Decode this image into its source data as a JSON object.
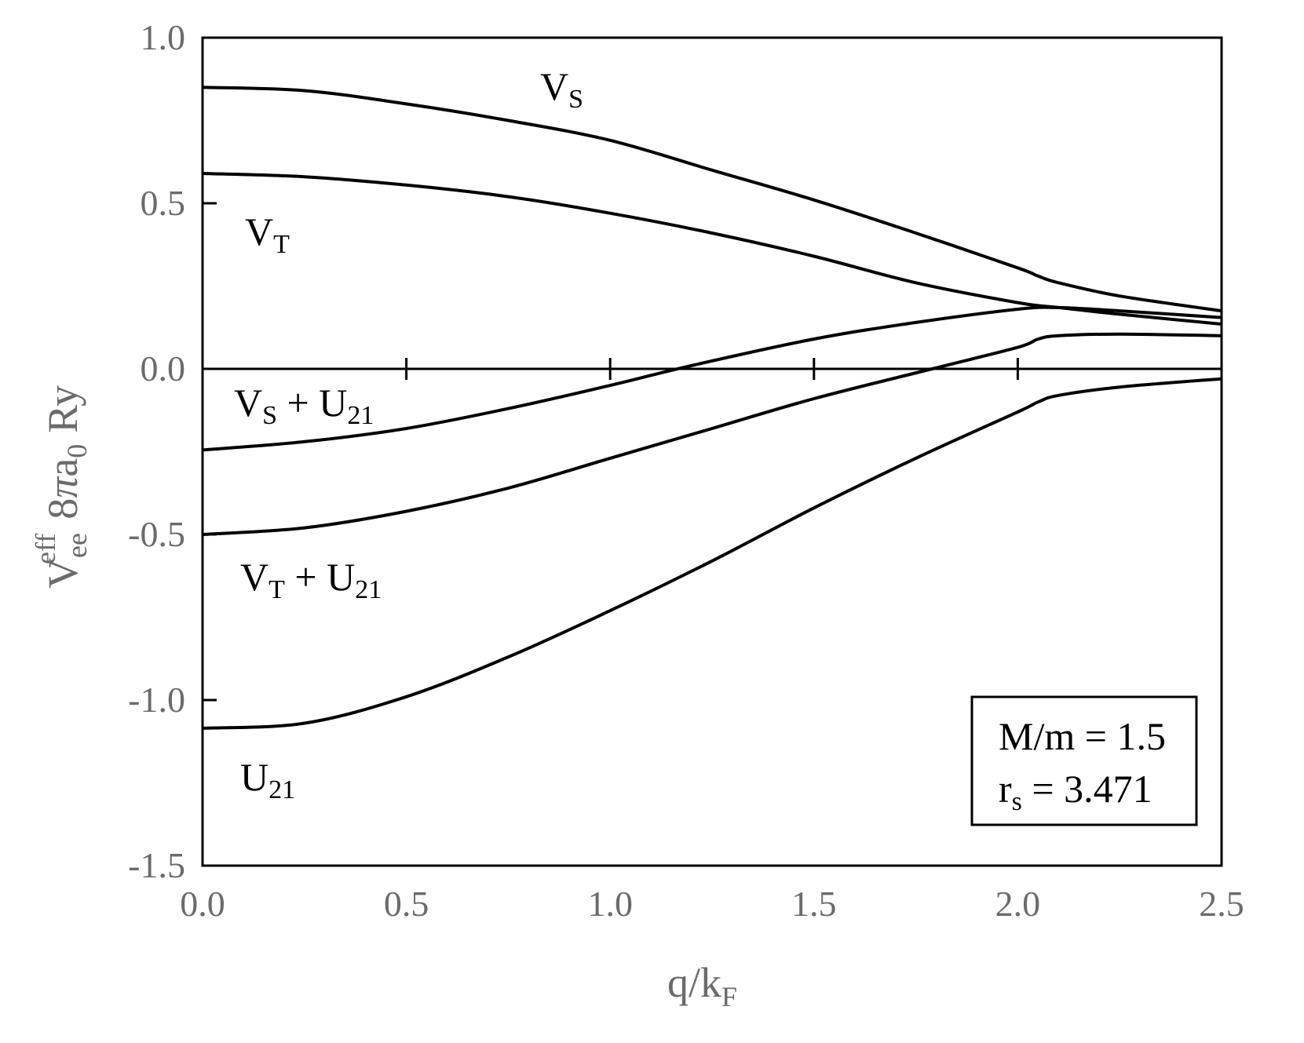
{
  "chart_data": {
    "type": "line",
    "xlabel": {
      "main": "q/k",
      "sub": "F"
    },
    "ylabel": {
      "v": "V",
      "v_sub": "ee",
      "v_sup": "eff",
      "rest": "8",
      "pi": "π",
      "a": "a",
      "a_sub": "0",
      "ry": "Ry"
    },
    "xlim": [
      0,
      2.5
    ],
    "ylim": [
      -1.5,
      1.0
    ],
    "x_ticks": [
      0.0,
      0.5,
      1.0,
      1.5,
      2.0,
      2.5
    ],
    "x_tick_labels": [
      "0.0",
      "0.5",
      "1.0",
      "1.5",
      "2.0",
      "2.5"
    ],
    "y_ticks": [
      1.0,
      0.5,
      0.0,
      -0.5,
      -1.0,
      -1.5
    ],
    "y_tick_labels": [
      "1.0",
      "0.5",
      "0.0",
      "-0.5",
      "-1.0",
      "-1.5"
    ],
    "line_color": "#000000",
    "axis_text_color": "#6b6b6b",
    "series": [
      {
        "name": "V_S",
        "x": [
          0,
          0.25,
          0.5,
          0.75,
          1.0,
          1.25,
          1.5,
          1.75,
          2.0,
          2.05,
          2.1,
          2.25,
          2.5
        ],
        "y": [
          0.85,
          0.84,
          0.8,
          0.75,
          0.69,
          0.6,
          0.51,
          0.41,
          0.305,
          0.28,
          0.26,
          0.22,
          0.175
        ]
      },
      {
        "name": "V_T",
        "x": [
          0,
          0.25,
          0.5,
          0.75,
          1.0,
          1.25,
          1.5,
          1.75,
          2.0,
          2.1,
          2.25,
          2.5
        ],
        "y": [
          0.59,
          0.58,
          0.555,
          0.52,
          0.47,
          0.41,
          0.34,
          0.26,
          0.2,
          0.185,
          0.165,
          0.135
        ]
      },
      {
        "name": "V_S + U_21",
        "x": [
          0,
          0.25,
          0.5,
          0.75,
          1.0,
          1.2,
          1.5,
          1.75,
          2.0,
          2.1,
          2.25,
          2.5
        ],
        "y": [
          -0.245,
          -0.22,
          -0.18,
          -0.12,
          -0.05,
          0.01,
          0.09,
          0.14,
          0.18,
          0.185,
          0.175,
          0.155
        ]
      },
      {
        "name": "V_T + U_21",
        "x": [
          0,
          0.25,
          0.5,
          0.75,
          1.0,
          1.25,
          1.5,
          1.79,
          2.0,
          2.05,
          2.1,
          2.25,
          2.5
        ],
        "y": [
          -0.5,
          -0.48,
          -0.43,
          -0.36,
          -0.27,
          -0.18,
          -0.09,
          0.0,
          0.065,
          0.09,
          0.1,
          0.105,
          0.1
        ]
      },
      {
        "name": "U_21",
        "x": [
          0,
          0.25,
          0.5,
          0.75,
          1.0,
          1.25,
          1.5,
          1.75,
          2.0,
          2.05,
          2.1,
          2.25,
          2.5
        ],
        "y": [
          -1.085,
          -1.07,
          -0.99,
          -0.87,
          -0.73,
          -0.58,
          -0.42,
          -0.27,
          -0.13,
          -0.1,
          -0.08,
          -0.055,
          -0.03
        ]
      }
    ],
    "curve_labels": [
      {
        "main": "V",
        "sub": "S",
        "plus": ""
      },
      {
        "main": "V",
        "sub": "T",
        "plus": ""
      },
      {
        "main": "V",
        "sub": "S",
        "plus": " + U",
        "sub2": "21"
      },
      {
        "main": "V",
        "sub": "T",
        "plus": " + U",
        "sub2": "21"
      },
      {
        "main": "U",
        "sub": "21",
        "plus": ""
      }
    ],
    "legend_box": {
      "line1": "M/m = 1.5",
      "line2_main": "r",
      "line2_sub": "s",
      "line2_rest": " = 3.471",
      "placement": "bottom-right"
    }
  }
}
